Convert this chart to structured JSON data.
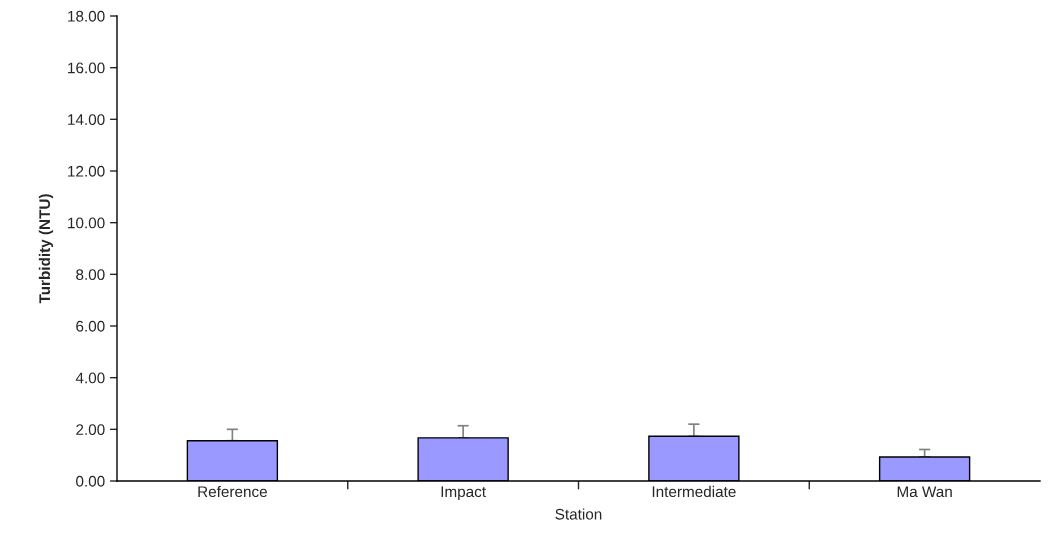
{
  "chart_data": {
    "type": "bar",
    "xlabel": "Station",
    "ylabel": "Turbidity (NTU)",
    "categories": [
      "Reference",
      "Impact",
      "Intermediate",
      "Ma Wan"
    ],
    "values": [
      1.56,
      1.67,
      1.73,
      0.93
    ],
    "errors": [
      [
        1.56,
        2.0
      ],
      [
        1.67,
        2.14
      ],
      [
        1.73,
        2.2
      ],
      [
        0.93,
        1.22
      ]
    ],
    "color": "#9999ff",
    "ylim": [
      0,
      18
    ],
    "yticks": [
      {
        "value": 0,
        "label": "0.00"
      },
      {
        "value": 2,
        "label": "2.00"
      },
      {
        "value": 4,
        "label": "4.00"
      },
      {
        "value": 6,
        "label": "6.00"
      },
      {
        "value": 8,
        "label": "8.00"
      },
      {
        "value": 10,
        "label": "10.00"
      },
      {
        "value": 12,
        "label": "12.00"
      },
      {
        "value": 14,
        "label": "14.00"
      },
      {
        "value": 16,
        "label": "16.00"
      },
      {
        "value": 18,
        "label": "18.00"
      }
    ],
    "grid": false,
    "legend": false
  }
}
